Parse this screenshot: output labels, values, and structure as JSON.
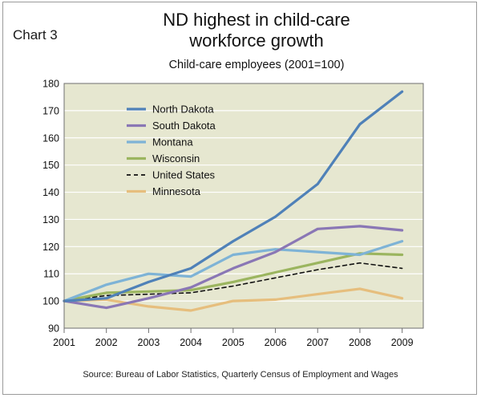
{
  "chart_label": "Chart 3",
  "title_line1": "ND highest in child-care",
  "title_line2": "workforce growth",
  "subtitle": "Child-care employees (2001=100)",
  "source": "Source: Bureau of Labor Statistics, Quarterly Census of Employment and Wages",
  "chart_data": {
    "type": "line",
    "title": "ND highest in child-care workforce growth",
    "subtitle": "Child-care employees (2001=100)",
    "xlabel": "",
    "ylabel": "",
    "ylim": [
      90,
      180
    ],
    "yticks": [
      90,
      100,
      110,
      120,
      130,
      140,
      150,
      160,
      170,
      180
    ],
    "xlim": [
      2001,
      2009.5
    ],
    "xtick_labels": [
      {
        "label": "2001",
        "x": 2001
      },
      {
        "label": "2002",
        "x": 2002
      },
      {
        "label": "2003",
        "x": 2003
      },
      {
        "label": "2004",
        "x": 2004
      },
      {
        "label": "2005",
        "x": 2005
      },
      {
        "label": "2006",
        "x": 2006
      },
      {
        "label": "2007",
        "x": 2007
      },
      {
        "label": "2008",
        "x": 2008
      },
      {
        "label": "2009",
        "x": 2009
      }
    ],
    "grid": true,
    "plot_background": "#e6e7d0",
    "legend_position": "top-left",
    "series": [
      {
        "name": "North Dakota",
        "color": "#4f81b8",
        "dash": false,
        "points": [
          [
            2001,
            100
          ],
          [
            2002,
            101
          ],
          [
            2003,
            107
          ],
          [
            2004,
            112
          ],
          [
            2005,
            122
          ],
          [
            2006,
            131
          ],
          [
            2007,
            143
          ],
          [
            2008,
            165
          ],
          [
            2009,
            177
          ]
        ]
      },
      {
        "name": "South Dakota",
        "color": "#8a77b5",
        "dash": false,
        "points": [
          [
            2001,
            100
          ],
          [
            2002,
            97.5
          ],
          [
            2003,
            101
          ],
          [
            2004,
            105
          ],
          [
            2005,
            112
          ],
          [
            2006,
            118
          ],
          [
            2007,
            126.5
          ],
          [
            2008,
            127.5
          ],
          [
            2009,
            126
          ]
        ]
      },
      {
        "name": "Montana",
        "color": "#7eb3d6",
        "dash": false,
        "points": [
          [
            2001,
            100
          ],
          [
            2002,
            106
          ],
          [
            2003,
            110
          ],
          [
            2004,
            109
          ],
          [
            2005,
            117
          ],
          [
            2006,
            119
          ],
          [
            2007,
            118
          ],
          [
            2008,
            117
          ],
          [
            2009,
            122
          ]
        ]
      },
      {
        "name": "Wisconsin",
        "color": "#9bb55f",
        "dash": false,
        "points": [
          [
            2001,
            100
          ],
          [
            2002,
            103
          ],
          [
            2003,
            103.5
          ],
          [
            2004,
            104
          ],
          [
            2005,
            107
          ],
          [
            2006,
            110.5
          ],
          [
            2007,
            114
          ],
          [
            2008,
            117.5
          ],
          [
            2009,
            117
          ]
        ]
      },
      {
        "name": "United States",
        "color": "#111111",
        "dash": true,
        "points": [
          [
            2001,
            100
          ],
          [
            2002,
            102
          ],
          [
            2003,
            102.5
          ],
          [
            2004,
            103
          ],
          [
            2005,
            105.5
          ],
          [
            2006,
            108.5
          ],
          [
            2007,
            111.5
          ],
          [
            2008,
            114
          ],
          [
            2009,
            112
          ]
        ]
      },
      {
        "name": "Minnesota",
        "color": "#e6be7d",
        "dash": false,
        "points": [
          [
            2001,
            100
          ],
          [
            2002,
            100.5
          ],
          [
            2003,
            98
          ],
          [
            2004,
            96.5
          ],
          [
            2005,
            100
          ],
          [
            2006,
            100.5
          ],
          [
            2007,
            102.5
          ],
          [
            2008,
            104.5
          ],
          [
            2009,
            101
          ]
        ]
      }
    ]
  }
}
